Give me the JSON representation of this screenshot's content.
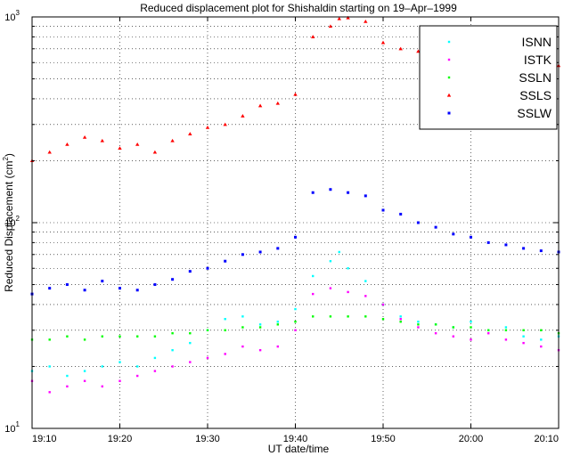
{
  "chart_data": {
    "type": "scatter",
    "title": "Reduced displacement plot for Shishaldin starting on 19–Apr–1999",
    "xlabel": "UT date/time",
    "ylabel": "Reduced Displacement (cm",
    "ylabel_sup": "2",
    "ylabel_close": ")",
    "yscale": "log",
    "xlim_minutes": [
      0,
      60
    ],
    "ylim": [
      10,
      1000
    ],
    "grid": true,
    "grid_style": "dotted",
    "legend_position": "top-right",
    "x_ticks": [
      {
        "label": "19:10",
        "value": 0
      },
      {
        "label": "19:20",
        "value": 10
      },
      {
        "label": "19:30",
        "value": 20
      },
      {
        "label": "19:40",
        "value": 30
      },
      {
        "label": "19:50",
        "value": 40
      },
      {
        "label": "20:00",
        "value": 50
      },
      {
        "label": "20:10",
        "value": 60
      }
    ],
    "y_ticks": [
      {
        "base": "10",
        "exp": "1",
        "value": 10
      },
      {
        "base": "10",
        "exp": "2",
        "value": 100
      },
      {
        "base": "10",
        "exp": "3",
        "value": 1000
      }
    ],
    "series": [
      {
        "name": "ISNN",
        "color": "#00ffff",
        "marker": "dot",
        "points": [
          [
            0,
            19
          ],
          [
            2,
            20
          ],
          [
            4,
            18
          ],
          [
            6,
            19
          ],
          [
            8,
            20
          ],
          [
            10,
            21
          ],
          [
            12,
            20
          ],
          [
            14,
            22
          ],
          [
            16,
            24
          ],
          [
            18,
            26
          ],
          [
            20,
            30
          ],
          [
            22,
            34
          ],
          [
            24,
            35
          ],
          [
            26,
            32
          ],
          [
            28,
            33
          ],
          [
            30,
            38
          ],
          [
            32,
            55
          ],
          [
            34,
            65
          ],
          [
            35,
            72
          ],
          [
            36,
            60
          ],
          [
            38,
            52
          ],
          [
            40,
            40
          ],
          [
            42,
            35
          ],
          [
            44,
            33
          ],
          [
            46,
            32
          ],
          [
            48,
            31
          ],
          [
            50,
            33
          ],
          [
            52,
            30
          ],
          [
            54,
            31
          ],
          [
            56,
            28
          ],
          [
            58,
            27
          ],
          [
            60,
            28
          ]
        ]
      },
      {
        "name": "ISTK",
        "color": "#ff00ff",
        "marker": "dot",
        "points": [
          [
            0,
            17
          ],
          [
            2,
            15
          ],
          [
            4,
            16
          ],
          [
            6,
            17
          ],
          [
            8,
            16
          ],
          [
            10,
            17
          ],
          [
            12,
            18
          ],
          [
            14,
            19
          ],
          [
            16,
            20
          ],
          [
            18,
            21
          ],
          [
            20,
            22
          ],
          [
            22,
            23
          ],
          [
            24,
            25
          ],
          [
            26,
            24
          ],
          [
            28,
            25
          ],
          [
            30,
            30
          ],
          [
            32,
            45
          ],
          [
            34,
            48
          ],
          [
            36,
            46
          ],
          [
            38,
            44
          ],
          [
            40,
            40
          ],
          [
            42,
            34
          ],
          [
            44,
            31
          ],
          [
            46,
            29
          ],
          [
            48,
            28
          ],
          [
            50,
            27
          ],
          [
            52,
            29
          ],
          [
            54,
            27
          ],
          [
            56,
            26
          ],
          [
            58,
            25
          ],
          [
            60,
            24
          ]
        ]
      },
      {
        "name": "SSLN",
        "color": "#00ff00",
        "marker": "dot",
        "points": [
          [
            0,
            27
          ],
          [
            2,
            27
          ],
          [
            4,
            28
          ],
          [
            6,
            27
          ],
          [
            8,
            28
          ],
          [
            10,
            28
          ],
          [
            12,
            28
          ],
          [
            14,
            28
          ],
          [
            16,
            29
          ],
          [
            18,
            29
          ],
          [
            20,
            30
          ],
          [
            22,
            30
          ],
          [
            24,
            31
          ],
          [
            26,
            31
          ],
          [
            28,
            32
          ],
          [
            30,
            33
          ],
          [
            32,
            35
          ],
          [
            34,
            35
          ],
          [
            36,
            35
          ],
          [
            38,
            35
          ],
          [
            40,
            34
          ],
          [
            42,
            33
          ],
          [
            44,
            32
          ],
          [
            46,
            32
          ],
          [
            48,
            31
          ],
          [
            50,
            31
          ],
          [
            52,
            30
          ],
          [
            54,
            30
          ],
          [
            56,
            30
          ],
          [
            58,
            30
          ],
          [
            60,
            29
          ]
        ]
      },
      {
        "name": "SSLS",
        "color": "#ff0000",
        "marker": "triangle",
        "points": [
          [
            0,
            200
          ],
          [
            2,
            220
          ],
          [
            4,
            240
          ],
          [
            6,
            260
          ],
          [
            8,
            250
          ],
          [
            10,
            230
          ],
          [
            12,
            240
          ],
          [
            14,
            220
          ],
          [
            16,
            250
          ],
          [
            18,
            270
          ],
          [
            20,
            290
          ],
          [
            22,
            300
          ],
          [
            24,
            330
          ],
          [
            26,
            370
          ],
          [
            28,
            380
          ],
          [
            30,
            420
          ],
          [
            32,
            800
          ],
          [
            34,
            900
          ],
          [
            35,
            980
          ],
          [
            36,
            990
          ],
          [
            38,
            950
          ],
          [
            40,
            750
          ],
          [
            42,
            700
          ],
          [
            44,
            680
          ],
          [
            46,
            690
          ],
          [
            48,
            650
          ],
          [
            50,
            600
          ],
          [
            52,
            620
          ],
          [
            54,
            650
          ],
          [
            56,
            630
          ],
          [
            58,
            600
          ],
          [
            60,
            580
          ]
        ]
      },
      {
        "name": "SSLW",
        "color": "#0000ff",
        "marker": "square",
        "points": [
          [
            0,
            45
          ],
          [
            2,
            48
          ],
          [
            4,
            50
          ],
          [
            6,
            47
          ],
          [
            8,
            52
          ],
          [
            10,
            48
          ],
          [
            12,
            47
          ],
          [
            14,
            50
          ],
          [
            16,
            53
          ],
          [
            18,
            58
          ],
          [
            20,
            60
          ],
          [
            22,
            65
          ],
          [
            24,
            70
          ],
          [
            26,
            72
          ],
          [
            28,
            75
          ],
          [
            30,
            85
          ],
          [
            32,
            140
          ],
          [
            34,
            145
          ],
          [
            36,
            140
          ],
          [
            38,
            135
          ],
          [
            40,
            115
          ],
          [
            42,
            110
          ],
          [
            44,
            100
          ],
          [
            46,
            95
          ],
          [
            48,
            88
          ],
          [
            50,
            85
          ],
          [
            52,
            80
          ],
          [
            54,
            78
          ],
          [
            56,
            75
          ],
          [
            58,
            73
          ],
          [
            60,
            72
          ]
        ]
      }
    ]
  }
}
